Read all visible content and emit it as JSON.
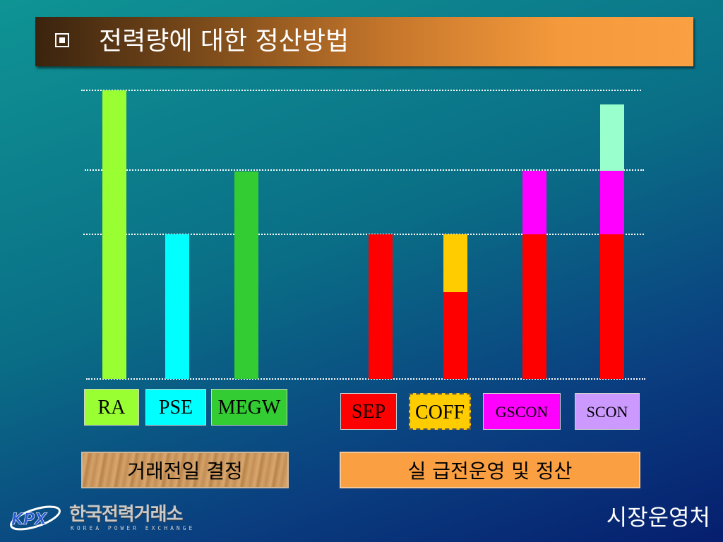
{
  "title": {
    "bullet_icon": "square-bullet-icon",
    "text": "전력량에 대한 정산방법"
  },
  "bars": [
    {
      "name": "RA",
      "segments": [
        {
          "level": 1.0,
          "color": "#99ff33"
        }
      ]
    },
    {
      "name": "PSE",
      "segments": [
        {
          "level": 0.5,
          "color": "#00ffff"
        }
      ]
    },
    {
      "name": "MEGW",
      "segments": [
        {
          "level": 0.72,
          "color": "#33cc33"
        }
      ]
    },
    {
      "name": "SEP",
      "segments": [
        {
          "level": 0.5,
          "color": "#ff0000"
        }
      ]
    },
    {
      "name": "COFF",
      "segments": [
        {
          "level": 0.3,
          "color": "#ff0000"
        },
        {
          "level": 0.2,
          "color": "#ffcc00"
        }
      ]
    },
    {
      "name": "GSCON",
      "segments": [
        {
          "level": 0.5,
          "color": "#ff0000"
        },
        {
          "level": 0.22,
          "color": "#ff00ff"
        }
      ]
    },
    {
      "name": "SCON",
      "segments": [
        {
          "level": 0.5,
          "color": "#ff0000"
        },
        {
          "level": 0.22,
          "color": "#ff00ff"
        },
        {
          "level": 0.23,
          "color": "#99ffcc"
        }
      ]
    }
  ],
  "labels": [
    {
      "text": "RA",
      "color": "#99ff33"
    },
    {
      "text": "PSE",
      "color": "#00ffff"
    },
    {
      "text": "MEGW",
      "color": "#33cc33"
    },
    {
      "text": "SEP",
      "color": "#ff0000"
    },
    {
      "text": "COFF",
      "color": "#ffcc00"
    },
    {
      "text": "GSCON",
      "color": "#ff00ff"
    },
    {
      "text": "SCON",
      "color": "#cc99ff"
    }
  ],
  "groups": {
    "left": "거래전일 결정",
    "right": "실 급전운영 및 정산"
  },
  "footer": {
    "logo_icon": "kpx-logo-icon",
    "logo_text": "KPX",
    "org_name": "한국전력거래소",
    "org_sub": "KOREA POWER EXCHANGE",
    "dept": "시장운영처"
  }
}
